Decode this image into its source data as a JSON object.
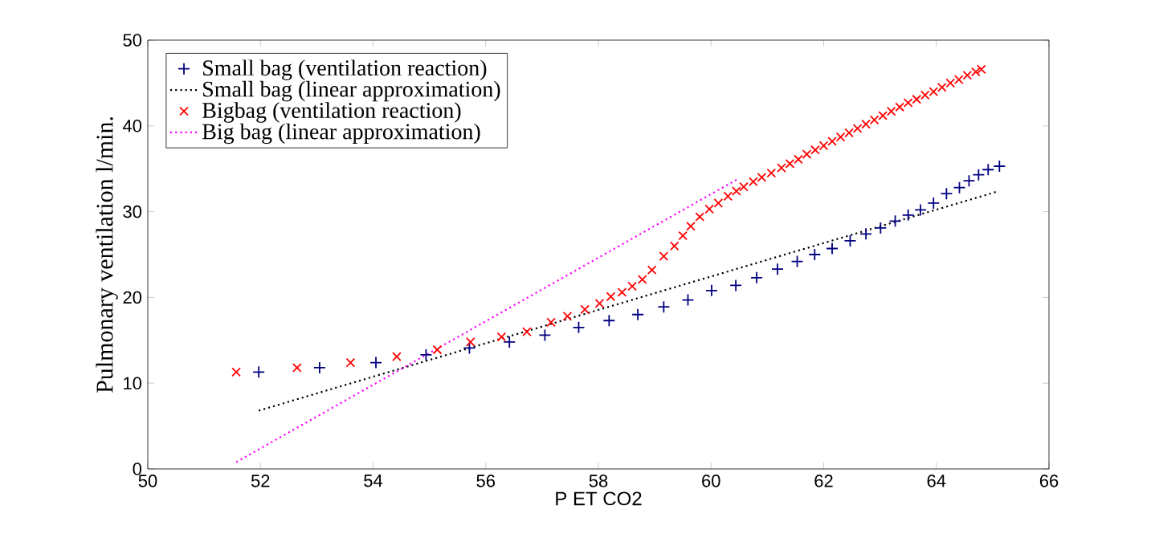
{
  "chart_data": {
    "type": "scatter",
    "xlabel": "P ET CO2",
    "ylabel": "Pulmonary ventilation l/min.",
    "xlim": [
      50,
      66
    ],
    "xticks": [
      50,
      52,
      54,
      56,
      58,
      60,
      62,
      64,
      66
    ],
    "ylim": [
      0,
      50
    ],
    "yticks": [
      0,
      10,
      20,
      30,
      40,
      50
    ],
    "grid": false,
    "legend": "top left",
    "series": [
      {
        "name": "Small bag (ventilation reaction)",
        "marker": "plus",
        "color": "#000080",
        "x": [
          51.97,
          53.05,
          54.05,
          54.94,
          55.71,
          56.42,
          57.05,
          57.65,
          58.19,
          58.7,
          59.16,
          59.59,
          60.01,
          60.44,
          60.81,
          61.18,
          61.53,
          61.84,
          62.15,
          62.47,
          62.75,
          63.01,
          63.27,
          63.5,
          63.72,
          63.95,
          64.18,
          64.41,
          64.58,
          64.75,
          64.92,
          65.12
        ],
        "values": [
          11.3,
          11.8,
          12.4,
          13.3,
          14.1,
          14.8,
          15.6,
          16.5,
          17.3,
          18.0,
          18.9,
          19.7,
          20.8,
          21.4,
          22.3,
          23.3,
          24.2,
          25.0,
          25.7,
          26.6,
          27.4,
          28.1,
          28.9,
          29.6,
          30.2,
          31.0,
          32.1,
          32.8,
          33.6,
          34.3,
          34.9,
          35.3
        ]
      },
      {
        "name": "Small bag (linear approximation)",
        "type": "line",
        "line_style": "dotted",
        "marker": "none",
        "color": "#000000",
        "x": [
          51.97,
          65.06
        ],
        "values": [
          6.8,
          32.3
        ]
      },
      {
        "name": "Bigbag (ventilation reaction)",
        "marker": "cross",
        "color": "#ff0000",
        "x": [
          51.57,
          52.65,
          53.6,
          54.42,
          55.14,
          55.73,
          56.28,
          56.73,
          57.16,
          57.45,
          57.76,
          58.02,
          58.22,
          58.42,
          58.6,
          58.78,
          58.95,
          59.16,
          59.35,
          59.5,
          59.64,
          59.8,
          59.97,
          60.13,
          60.3,
          60.45,
          60.58,
          60.75,
          60.9,
          61.07,
          61.25,
          61.4,
          61.55,
          61.7,
          61.85,
          62.0,
          62.15,
          62.3,
          62.45,
          62.6,
          62.75,
          62.9,
          63.05,
          63.2,
          63.35,
          63.5,
          63.65,
          63.8,
          63.95,
          64.1,
          64.25,
          64.4,
          64.55,
          64.7,
          64.8
        ],
        "values": [
          11.3,
          11.8,
          12.4,
          13.1,
          13.9,
          14.8,
          15.4,
          16.0,
          17.1,
          17.8,
          18.6,
          19.3,
          20.1,
          20.6,
          21.3,
          22.1,
          23.2,
          24.8,
          26.0,
          27.2,
          28.3,
          29.4,
          30.3,
          31.0,
          31.8,
          32.4,
          32.9,
          33.5,
          34.0,
          34.5,
          35.1,
          35.6,
          36.1,
          36.7,
          37.2,
          37.7,
          38.2,
          38.7,
          39.2,
          39.7,
          40.2,
          40.7,
          41.2,
          41.7,
          42.2,
          42.7,
          43.1,
          43.6,
          44.0,
          44.5,
          45.0,
          45.4,
          45.9,
          46.3,
          46.6
        ]
      },
      {
        "name": "Big bag (linear approximation)",
        "type": "line",
        "line_style": "dotted",
        "marker": "none",
        "color": "#ff00ff",
        "x": [
          51.57,
          60.5
        ],
        "values": [
          0.8,
          33.9
        ]
      }
    ]
  }
}
